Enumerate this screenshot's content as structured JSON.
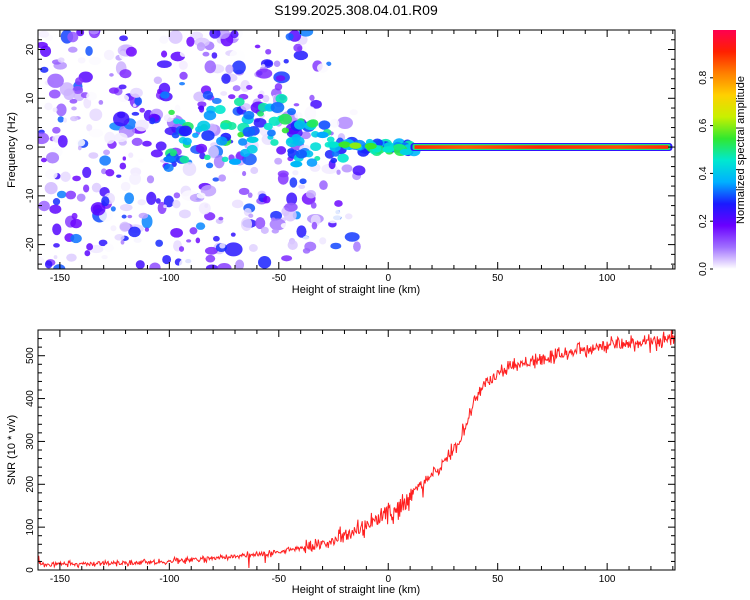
{
  "title": "S199.2025.308.04.01.R09",
  "chart_data": [
    {
      "type": "heatmap",
      "name": "spectrogram",
      "xlabel": "Height of straight line (km)",
      "ylabel": "Frequency (Hz)",
      "xlim": [
        -160,
        131
      ],
      "ylim": [
        -25,
        24
      ],
      "xticks": [
        -150,
        -100,
        -50,
        0,
        50,
        100
      ],
      "yticks": [
        -20,
        -10,
        0,
        10,
        20
      ],
      "colorbar": {
        "label": "Normalized spectral amplitude",
        "range": [
          0,
          1
        ],
        "ticks": [
          0.0,
          0.2,
          0.4,
          0.6,
          0.8
        ],
        "colors": [
          "#ffffff",
          "#a070ff",
          "#6a00ff",
          "#1a1aff",
          "#00b0ff",
          "#00e8d0",
          "#30e830",
          "#c8f000",
          "#ffd000",
          "#ff8000",
          "#ff2000",
          "#ff0050"
        ]
      },
      "features": {
        "carrier_frequency": 0,
        "carrier_start_km": 12,
        "carrier_end_km": 128,
        "carrier_amplitude": 0.85,
        "noise_region_end_km": -28,
        "transition_start_km": -28,
        "transition_end_km": 12
      }
    },
    {
      "type": "line",
      "name": "snr",
      "xlabel": "Height of straight line (km)",
      "ylabel": "SNR (10 * v/v)",
      "xlim": [
        -160,
        131
      ],
      "ylim": [
        0,
        560
      ],
      "xticks": [
        -150,
        -100,
        -50,
        0,
        50,
        100
      ],
      "yticks": [
        0,
        100,
        200,
        300,
        400,
        500
      ],
      "series": [
        {
          "name": "SNR",
          "color": "#ff2020",
          "x": [
            -160,
            -150,
            -140,
            -130,
            -120,
            -110,
            -100,
            -90,
            -80,
            -70,
            -60,
            -50,
            -40,
            -30,
            -20,
            -10,
            0,
            10,
            20,
            30,
            35,
            40,
            45,
            50,
            60,
            70,
            80,
            90,
            100,
            110,
            120,
            131
          ],
          "y": [
            15,
            15,
            15,
            16,
            16,
            17,
            20,
            24,
            28,
            32,
            36,
            42,
            52,
            62,
            80,
            100,
            130,
            170,
            220,
            280,
            330,
            400,
            440,
            460,
            480,
            495,
            505,
            515,
            525,
            530,
            535,
            538
          ]
        }
      ]
    }
  ]
}
